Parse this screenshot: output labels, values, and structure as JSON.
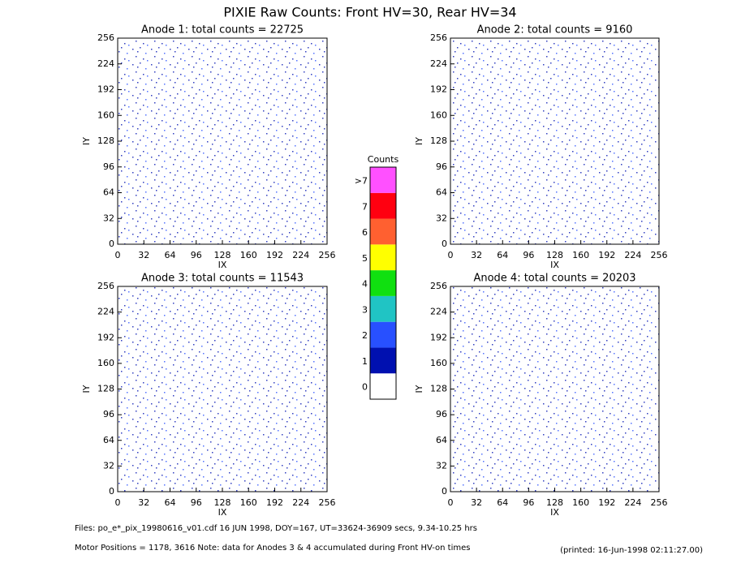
{
  "title": "PIXIE Raw Counts:  Front HV=30, Rear HV=34",
  "chart_data": [
    {
      "type": "heatmap",
      "title": "Anode 1: total counts = 22725",
      "xlabel": "IX",
      "ylabel": "IY",
      "xlim": [
        0,
        256
      ],
      "ylim": [
        0,
        256
      ],
      "xticks": [
        0,
        32,
        64,
        96,
        128,
        160,
        192,
        224,
        256
      ],
      "yticks": [
        0,
        32,
        64,
        96,
        128,
        160,
        192,
        224,
        256
      ]
    },
    {
      "type": "heatmap",
      "title": "Anode 2: total counts = 9160",
      "xlabel": "IX",
      "ylabel": "IY",
      "xlim": [
        0,
        256
      ],
      "ylim": [
        0,
        256
      ],
      "xticks": [
        0,
        32,
        64,
        96,
        128,
        160,
        192,
        224,
        256
      ],
      "yticks": [
        0,
        32,
        64,
        96,
        128,
        160,
        192,
        224,
        256
      ]
    },
    {
      "type": "heatmap",
      "title": "Anode 3: total counts = 11543",
      "xlabel": "IX",
      "ylabel": "IY",
      "xlim": [
        0,
        256
      ],
      "ylim": [
        0,
        256
      ],
      "xticks": [
        0,
        32,
        64,
        96,
        128,
        160,
        192,
        224,
        256
      ],
      "yticks": [
        0,
        32,
        64,
        96,
        128,
        160,
        192,
        224,
        256
      ]
    },
    {
      "type": "heatmap",
      "title": "Anode 4: total counts = 20203",
      "xlabel": "IX",
      "ylabel": "IY",
      "xlim": [
        0,
        256
      ],
      "ylim": [
        0,
        256
      ],
      "xticks": [
        0,
        32,
        64,
        96,
        128,
        160,
        192,
        224,
        256
      ],
      "yticks": [
        0,
        32,
        64,
        96,
        128,
        160,
        192,
        224,
        256
      ]
    }
  ],
  "colorbar": {
    "title": "Counts",
    "labels": [
      "0",
      "1",
      "2",
      "3",
      "4",
      "5",
      "6",
      "7",
      ">7"
    ],
    "colors": [
      "#ffffff",
      "#0010b0",
      "#2850ff",
      "#20c4c4",
      "#10e010",
      "#ffff00",
      "#ff6030",
      "#ff0010",
      "#ff50ff"
    ]
  },
  "footer": {
    "files": "Files: po_e*_pix_19980616_v01.cdf    16 JUN 1998, DOY=167, UT=33624-36909 secs,  9.34-10.25 hrs",
    "motor": "Motor Positions = 1178, 3616   Note: data for Anodes 3 & 4 accumulated during Front HV-on times",
    "printed": "(printed: 16-Jun-1998 02:11:27.00)"
  }
}
